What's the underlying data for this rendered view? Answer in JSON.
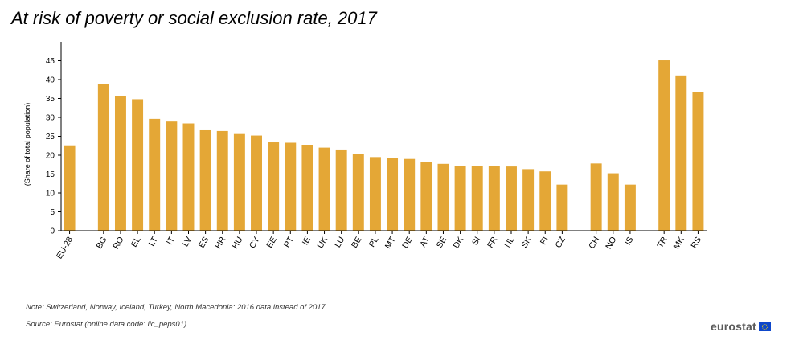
{
  "colors": {
    "bar": "#e4a736",
    "axis": "#000000",
    "text": "#000000"
  },
  "chart_data": {
    "type": "bar",
    "title": "At risk of poverty or social exclusion rate, 2017",
    "xlabel": "",
    "ylabel": "(Share of total population)",
    "ylim": [
      0,
      50
    ],
    "yticks": [
      0,
      5,
      10,
      15,
      20,
      25,
      30,
      35,
      40,
      45
    ],
    "grid": false,
    "legend": "none",
    "groups": [
      {
        "categories": [
          "EU-28"
        ],
        "values": [
          22.4
        ]
      },
      {
        "categories": [
          "BG",
          "RO",
          "EL",
          "LT",
          "IT",
          "LV",
          "ES",
          "HR",
          "HU",
          "CY",
          "EE",
          "PT",
          "IE",
          "UK",
          "LU",
          "BE",
          "PL",
          "MT",
          "DE",
          "AT",
          "SE",
          "DK",
          "SI",
          "FR",
          "NL",
          "SK",
          "FI",
          "CZ"
        ],
        "values": [
          38.9,
          35.7,
          34.8,
          29.6,
          28.9,
          28.4,
          26.6,
          26.4,
          25.6,
          25.2,
          23.4,
          23.3,
          22.7,
          22.0,
          21.5,
          20.3,
          19.5,
          19.2,
          19.0,
          18.1,
          17.7,
          17.2,
          17.1,
          17.1,
          17.0,
          16.3,
          15.7,
          12.2
        ]
      },
      {
        "categories": [
          "CH",
          "NO",
          "IS"
        ],
        "values": [
          17.8,
          15.2,
          12.2
        ]
      },
      {
        "categories": [
          "TR",
          "MK",
          "RS"
        ],
        "values": [
          45.1,
          41.1,
          36.7
        ]
      }
    ]
  },
  "footer": {
    "note": "Note: Switzerland, Norway, Iceland, Turkey, North Macedonia: 2016 data instead of 2017.",
    "source": "Source: Eurostat (online data code: ilc_peps01)",
    "brand": "eurostat"
  }
}
